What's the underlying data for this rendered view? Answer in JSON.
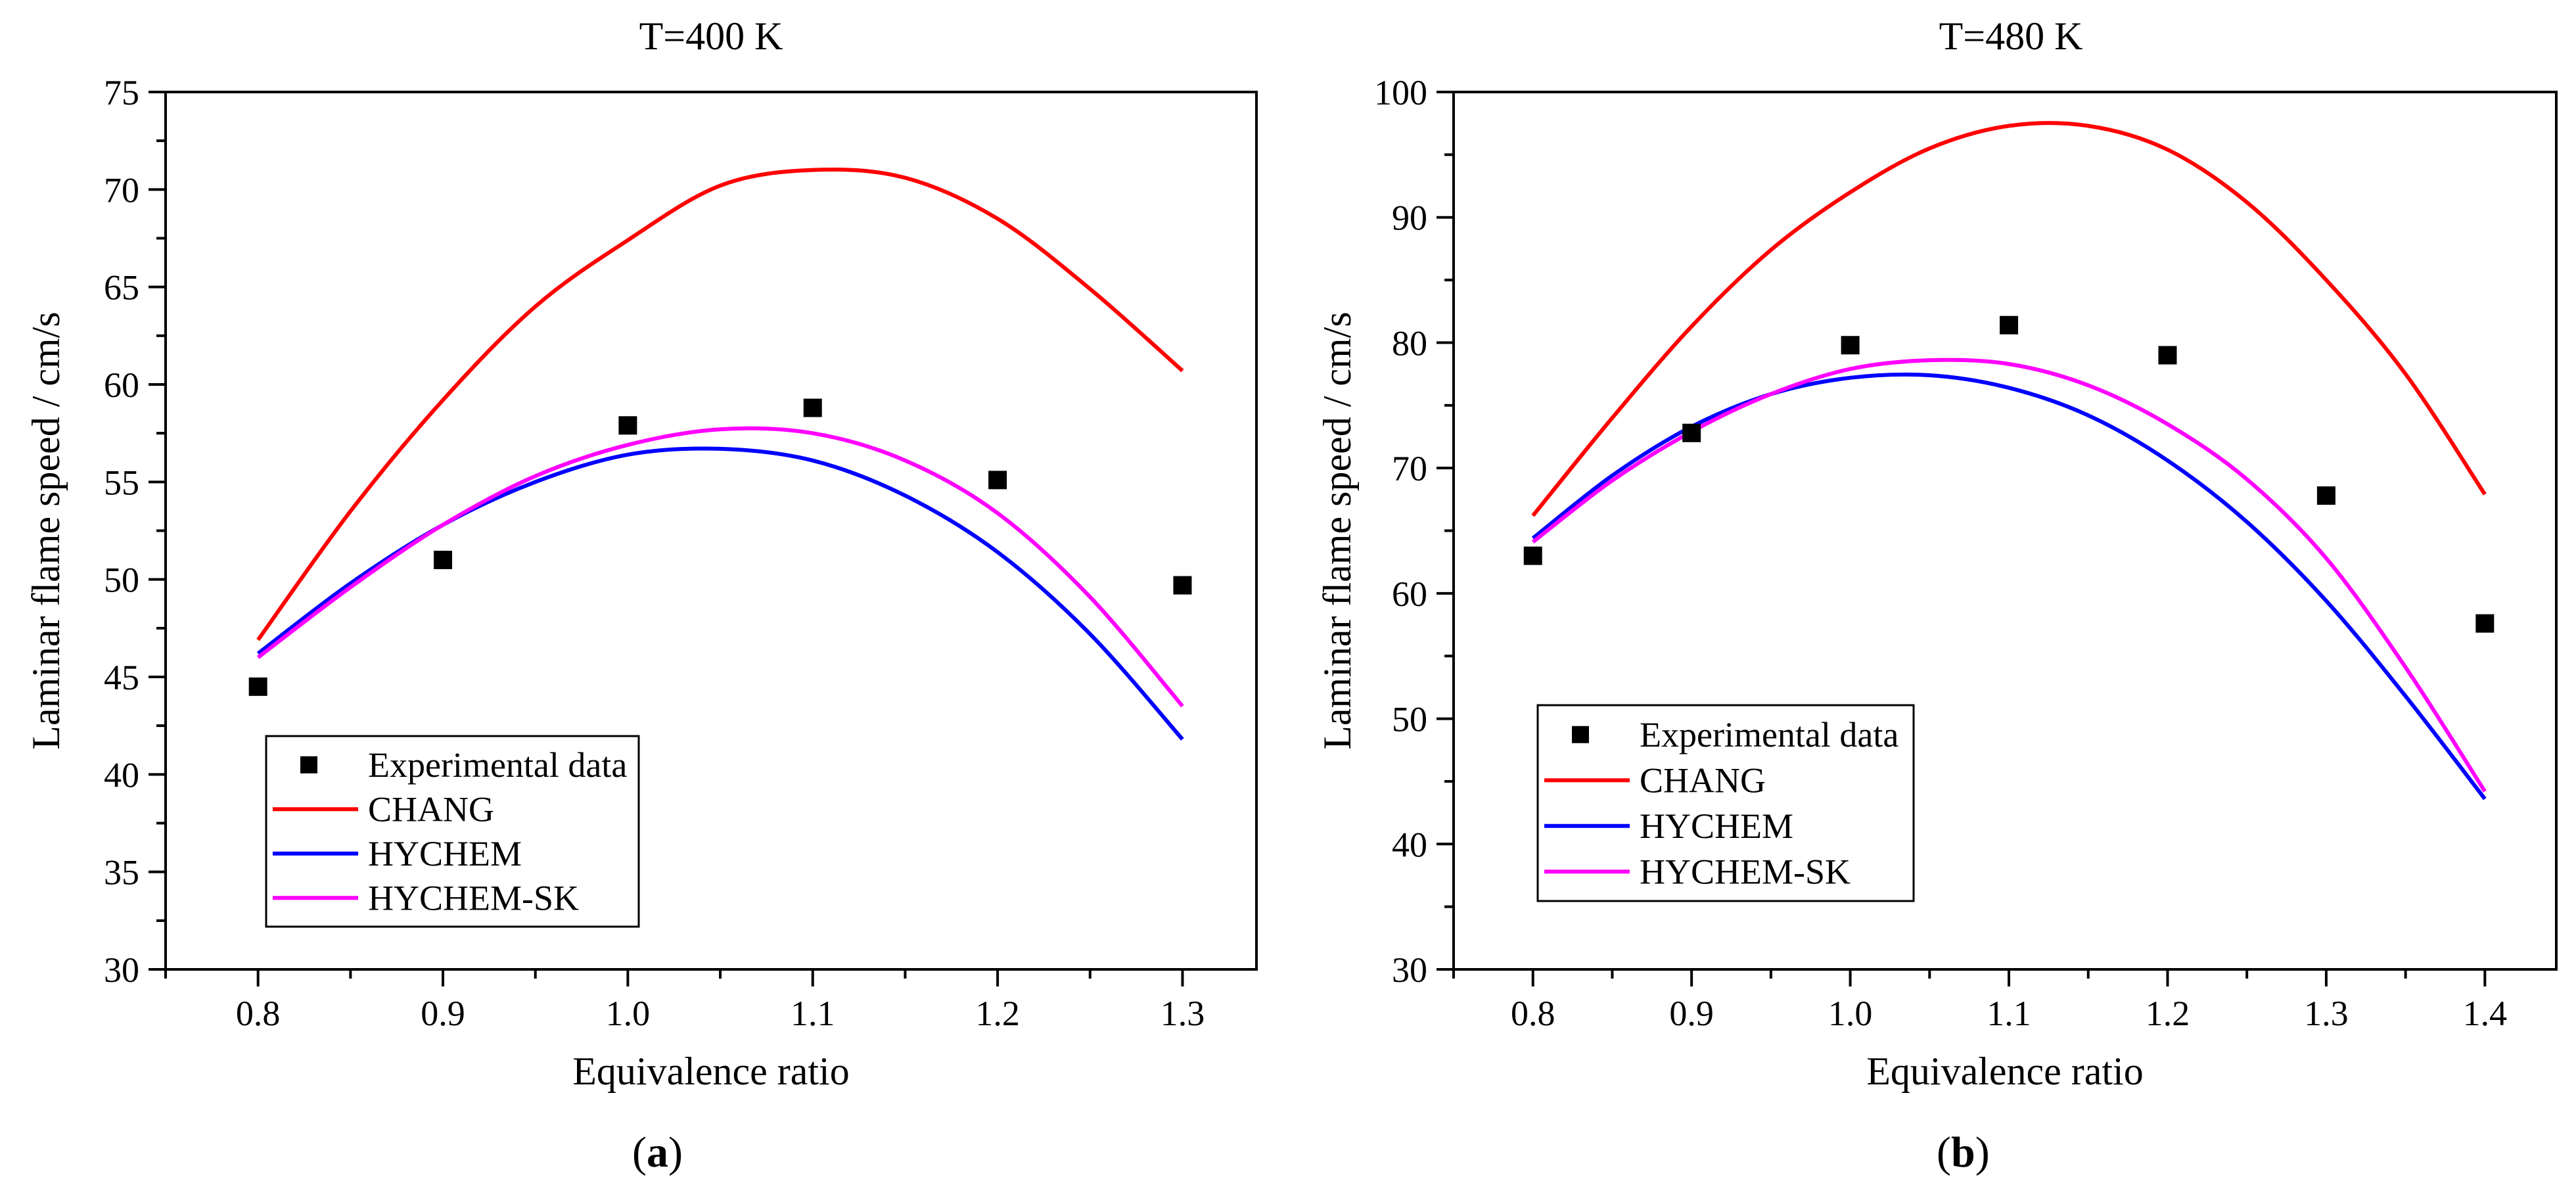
{
  "chart_data": [
    {
      "type": "line",
      "title": "T=400 K",
      "panel_label": "a",
      "xlabel": "Equivalence ratio",
      "ylabel": "Laminar flame speed / cm/s",
      "xlim": [
        0.75,
        1.34
      ],
      "ylim": [
        30,
        75
      ],
      "xticks": [
        0.8,
        0.9,
        1.0,
        1.1,
        1.2,
        1.3
      ],
      "xtick_labels": [
        "0.8",
        "0.9",
        "1.0",
        "1.1",
        "1.2",
        "1.3"
      ],
      "yticks": [
        30,
        35,
        40,
        45,
        50,
        55,
        60,
        65,
        70,
        75
      ],
      "ytick_labels": [
        "30",
        "35",
        "40",
        "45",
        "50",
        "55",
        "60",
        "65",
        "70",
        "75"
      ],
      "legend_position": "bottom-left",
      "scatter": {
        "name": "Experimental data",
        "color": "#000000",
        "x": [
          0.8,
          0.9,
          1.0,
          1.1,
          1.2,
          1.3
        ],
        "y": [
          44.5,
          51.0,
          57.9,
          58.8,
          55.1,
          49.7
        ]
      },
      "series": [
        {
          "name": "CHANG",
          "color": "#ff0000",
          "x": [
            0.8,
            0.85,
            0.9,
            0.95,
            1.0,
            1.05,
            1.1,
            1.15,
            1.2,
            1.25,
            1.3
          ],
          "y": [
            46.9,
            53.5,
            59.2,
            64.0,
            67.4,
            70.2,
            71.0,
            70.6,
            68.5,
            64.9,
            60.7
          ]
        },
        {
          "name": "HYCHEM",
          "color": "#0000ff",
          "x": [
            0.8,
            0.85,
            0.9,
            0.95,
            1.0,
            1.05,
            1.1,
            1.15,
            1.2,
            1.25,
            1.3
          ],
          "y": [
            46.2,
            49.8,
            52.8,
            55.0,
            56.4,
            56.7,
            56.1,
            54.3,
            51.4,
            47.2,
            41.8
          ]
        },
        {
          "name": "HYCHEM-SK",
          "color": "#ff00ff",
          "x": [
            0.8,
            0.85,
            0.9,
            0.95,
            1.0,
            1.05,
            1.1,
            1.15,
            1.2,
            1.25,
            1.3
          ],
          "y": [
            46.0,
            49.6,
            52.8,
            55.3,
            56.9,
            57.7,
            57.5,
            56.1,
            53.4,
            49.1,
            43.5
          ]
        }
      ]
    },
    {
      "type": "line",
      "title": "T=480 K",
      "panel_label": "b",
      "xlabel": "Equivalence ratio",
      "ylabel": "Laminar flame speed / cm/s",
      "xlim": [
        0.75,
        1.445
      ],
      "ylim": [
        30,
        100
      ],
      "xticks": [
        0.8,
        0.9,
        1.0,
        1.1,
        1.2,
        1.3,
        1.4
      ],
      "xtick_labels": [
        "0.8",
        "0.9",
        "1.0",
        "1.1",
        "1.2",
        "1.3",
        "1.4"
      ],
      "yticks": [
        30,
        40,
        50,
        60,
        70,
        80,
        90,
        100
      ],
      "ytick_labels": [
        "30",
        "40",
        "50",
        "60",
        "70",
        "80",
        "90",
        "100"
      ],
      "legend_position": "bottom-left",
      "scatter": {
        "name": "Experimental data",
        "color": "#000000",
        "x": [
          0.8,
          0.9,
          1.0,
          1.1,
          1.2,
          1.3,
          1.4
        ],
        "y": [
          63.0,
          72.8,
          79.8,
          81.4,
          79.0,
          67.8,
          57.6
        ]
      },
      "series": [
        {
          "name": "CHANG",
          "color": "#ff0000",
          "x": [
            0.8,
            0.85,
            0.9,
            0.95,
            1.0,
            1.05,
            1.1,
            1.15,
            1.2,
            1.25,
            1.3,
            1.35,
            1.4
          ],
          "y": [
            66.2,
            74.0,
            81.3,
            87.4,
            92.0,
            95.5,
            97.3,
            97.3,
            95.4,
            91.2,
            85.0,
            77.5,
            67.9
          ]
        },
        {
          "name": "HYCHEM",
          "color": "#0000ff",
          "x": [
            0.8,
            0.85,
            0.9,
            0.95,
            1.0,
            1.05,
            1.1,
            1.15,
            1.2,
            1.25,
            1.3,
            1.35,
            1.4
          ],
          "y": [
            64.4,
            69.4,
            73.3,
            75.9,
            77.2,
            77.4,
            76.4,
            74.2,
            70.6,
            65.7,
            59.4,
            51.8,
            43.6
          ]
        },
        {
          "name": "HYCHEM-SK",
          "color": "#ff00ff",
          "x": [
            0.8,
            0.85,
            0.9,
            0.95,
            1.0,
            1.05,
            1.1,
            1.15,
            1.2,
            1.25,
            1.3,
            1.35,
            1.4
          ],
          "y": [
            64.1,
            69.0,
            72.9,
            75.9,
            77.9,
            78.6,
            78.3,
            76.6,
            73.5,
            69.1,
            62.8,
            54.1,
            44.2
          ]
        }
      ]
    }
  ]
}
